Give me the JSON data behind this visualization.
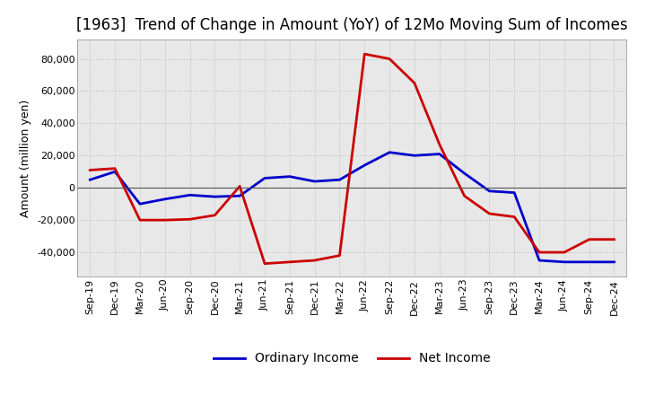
{
  "title": "[1963]  Trend of Change in Amount (YoY) of 12Mo Moving Sum of Incomes",
  "ylabel": "Amount (million yen)",
  "x_labels": [
    "Sep-19",
    "Dec-19",
    "Mar-20",
    "Jun-20",
    "Sep-20",
    "Dec-20",
    "Mar-21",
    "Jun-21",
    "Sep-21",
    "Dec-21",
    "Mar-22",
    "Jun-22",
    "Sep-22",
    "Dec-22",
    "Mar-23",
    "Jun-23",
    "Sep-23",
    "Dec-23",
    "Mar-24",
    "Jun-24",
    "Sep-24",
    "Dec-24"
  ],
  "ordinary_income": [
    5000,
    10000,
    -10000,
    -7000,
    -4500,
    -5500,
    -5000,
    6000,
    7000,
    4000,
    5000,
    14000,
    22000,
    20000,
    21000,
    9000,
    -2000,
    -3000,
    -45000,
    -46000,
    -46000,
    -46000
  ],
  "net_income": [
    11000,
    12000,
    -20000,
    -20000,
    -19500,
    -17000,
    1000,
    -47000,
    -46000,
    -45000,
    -42000,
    83000,
    80000,
    65000,
    27000,
    -5000,
    -16000,
    -18000,
    -40000,
    -40000,
    -32000,
    -32000
  ],
  "ordinary_color": "#0000cc",
  "net_color": "#cc0000",
  "ylim": [
    -55000,
    92000
  ],
  "yticks": [
    -40000,
    -20000,
    0,
    20000,
    40000,
    60000,
    80000
  ],
  "plot_bg_color": "#e8e8e8",
  "fig_bg_color": "#ffffff",
  "grid_color": "#bbbbbb",
  "title_fontsize": 12,
  "axis_label_fontsize": 9,
  "tick_fontsize": 8,
  "legend_fontsize": 10,
  "line_width": 2.0
}
